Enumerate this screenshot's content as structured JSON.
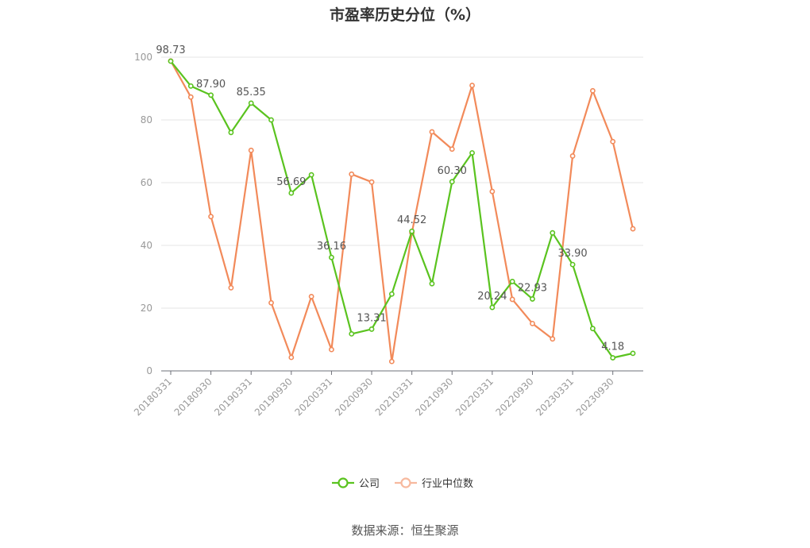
{
  "chart_data": {
    "type": "line",
    "title": "市盈率历史分位（%）",
    "source": "数据来源：恒生聚源",
    "ylim": [
      0,
      100
    ],
    "y_ticks": [
      0,
      20,
      40,
      60,
      80,
      100
    ],
    "grid": true,
    "legend_position": "bottom",
    "x": [
      "20180331",
      "20180630",
      "20180930",
      "20181231",
      "20190331",
      "20190630",
      "20190930",
      "20191231",
      "20200331",
      "20200630",
      "20200930",
      "20201231",
      "20210331",
      "20210630",
      "20210930",
      "20211231",
      "20220331",
      "20220630",
      "20220930",
      "20221231",
      "20230331",
      "20230630",
      "20230930",
      "20231231"
    ],
    "x_tick_labels": [
      "20180331",
      "20180930",
      "20190331",
      "20190930",
      "20200331",
      "20200930",
      "20210331",
      "20210930",
      "20220331",
      "20220930",
      "20230331",
      "20230930"
    ],
    "series": [
      {
        "name": "公司",
        "color": "#5ac31f",
        "values": [
          98.73,
          90.8,
          87.9,
          76.0,
          85.35,
          80.0,
          56.69,
          62.5,
          36.16,
          11.8,
          13.31,
          24.5,
          44.52,
          27.8,
          60.3,
          69.5,
          20.24,
          28.5,
          22.93,
          44.0,
          33.9,
          13.5,
          4.18,
          5.6
        ],
        "labeled": [
          {
            "index": 0,
            "text": "98.73"
          },
          {
            "index": 2,
            "text": "87.90"
          },
          {
            "index": 4,
            "text": "85.35"
          },
          {
            "index": 6,
            "text": "56.69"
          },
          {
            "index": 8,
            "text": "36.16"
          },
          {
            "index": 10,
            "text": "13.31"
          },
          {
            "index": 12,
            "text": "44.52"
          },
          {
            "index": 14,
            "text": "60.30"
          },
          {
            "index": 16,
            "text": "20.24"
          },
          {
            "index": 18,
            "text": "22.93"
          },
          {
            "index": 20,
            "text": "33.90"
          },
          {
            "index": 22,
            "text": "4.18"
          }
        ]
      },
      {
        "name": "行业中位数",
        "color": "#f28a5a",
        "values": [
          98.8,
          87.3,
          49.2,
          26.5,
          70.3,
          21.7,
          4.3,
          23.7,
          6.8,
          62.7,
          60.2,
          3.0,
          44.0,
          76.2,
          70.7,
          91.0,
          57.2,
          22.8,
          15.1,
          10.2,
          68.5,
          89.3,
          73.1,
          45.3
        ]
      }
    ]
  }
}
